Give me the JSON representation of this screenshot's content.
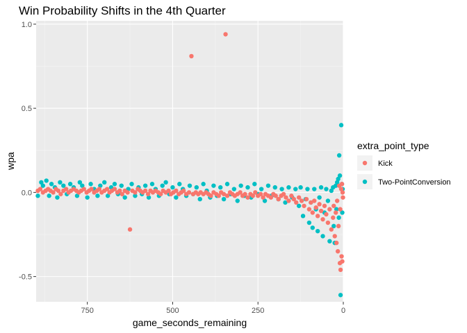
{
  "chart_data": {
    "type": "scatter",
    "title": "Win Probability Shifts in the 4th Quarter",
    "xlabel": "game_seconds_remaining",
    "ylabel": "wpa",
    "xlim": [
      900,
      0
    ],
    "ylim": [
      -0.65,
      1.02
    ],
    "x_reversed": true,
    "x_ticks": [
      750,
      500,
      250,
      0
    ],
    "y_ticks": [
      1.0,
      0.5,
      0.0,
      -0.5
    ],
    "x_tick_labels": [
      "750",
      "500",
      "250",
      "0"
    ],
    "y_tick_labels": [
      "1.0",
      "0.5",
      "0.0",
      "-0.5"
    ],
    "grid": true,
    "legend": {
      "title": "extra_point_type",
      "position": "right",
      "entries": [
        {
          "label": "Kick",
          "color": "#F8766D"
        },
        {
          "label": "Two-PointConversion",
          "color": "#00BFC4"
        }
      ]
    },
    "series": [
      {
        "name": "Two-PointConversion",
        "color": "#00BFC4",
        "points": [
          [
            895,
            -0.02
          ],
          [
            885,
            0.06
          ],
          [
            880,
            0.04
          ],
          [
            870,
            0.07
          ],
          [
            862,
            -0.02
          ],
          [
            855,
            0.05
          ],
          [
            845,
            0.03
          ],
          [
            838,
            -0.03
          ],
          [
            830,
            0.06
          ],
          [
            820,
            0.04
          ],
          [
            810,
            -0.01
          ],
          [
            800,
            0.05
          ],
          [
            790,
            0.03
          ],
          [
            780,
            -0.02
          ],
          [
            772,
            0.06
          ],
          [
            765,
            0.04
          ],
          [
            750,
            -0.03
          ],
          [
            740,
            0.05
          ],
          [
            730,
            0.02
          ],
          [
            720,
            -0.02
          ],
          [
            712,
            0.04
          ],
          [
            700,
            0.06
          ],
          [
            690,
            -0.02
          ],
          [
            680,
            0.03
          ],
          [
            670,
            0.05
          ],
          [
            660,
            -0.01
          ],
          [
            650,
            0.04
          ],
          [
            640,
            -0.03
          ],
          [
            630,
            0.02
          ],
          [
            620,
            0.05
          ],
          [
            610,
            -0.02
          ],
          [
            600,
            0.03
          ],
          [
            590,
            -0.01
          ],
          [
            580,
            0.04
          ],
          [
            570,
            -0.03
          ],
          [
            560,
            0.05
          ],
          [
            550,
            0.02
          ],
          [
            540,
            -0.02
          ],
          [
            530,
            0.04
          ],
          [
            520,
            0.06
          ],
          [
            510,
            -0.01
          ],
          [
            500,
            0.03
          ],
          [
            490,
            -0.03
          ],
          [
            480,
            0.05
          ],
          [
            470,
            0.02
          ],
          [
            460,
            -0.02
          ],
          [
            450,
            0.04
          ],
          [
            440,
            -0.01
          ],
          [
            430,
            0.03
          ],
          [
            420,
            -0.04
          ],
          [
            410,
            0.05
          ],
          [
            400,
            0.01
          ],
          [
            390,
            -0.03
          ],
          [
            380,
            0.04
          ],
          [
            370,
            -0.02
          ],
          [
            360,
            0.03
          ],
          [
            350,
            -0.04
          ],
          [
            340,
            0.05
          ],
          [
            330,
            -0.01
          ],
          [
            320,
            0.02
          ],
          [
            310,
            -0.05
          ],
          [
            300,
            0.04
          ],
          [
            290,
            -0.02
          ],
          [
            280,
            0.03
          ],
          [
            270,
            -0.03
          ],
          [
            260,
            0.05
          ],
          [
            250,
            -0.01
          ],
          [
            240,
            0.02
          ],
          [
            230,
            -0.05
          ],
          [
            220,
            0.04
          ],
          [
            210,
            -0.02
          ],
          [
            200,
            0.03
          ],
          [
            190,
            -0.04
          ],
          [
            180,
            0.02
          ],
          [
            170,
            -0.06
          ],
          [
            160,
            0.03
          ],
          [
            150,
            -0.03
          ],
          [
            140,
            0.02
          ],
          [
            130,
            -0.08
          ],
          [
            125,
            0.03
          ],
          [
            118,
            -0.14
          ],
          [
            110,
            -0.04
          ],
          [
            105,
            0.02
          ],
          [
            100,
            -0.18
          ],
          [
            95,
            -0.06
          ],
          [
            90,
            -0.21
          ],
          [
            85,
            0.02
          ],
          [
            80,
            -0.1
          ],
          [
            75,
            -0.23
          ],
          [
            70,
            -0.03
          ],
          [
            65,
            0.03
          ],
          [
            60,
            -0.26
          ],
          [
            55,
            -0.12
          ],
          [
            50,
            0.02
          ],
          [
            45,
            -0.05
          ],
          [
            40,
            -0.29
          ],
          [
            35,
            0.01
          ],
          [
            30,
            0.03
          ],
          [
            28,
            -0.2
          ],
          [
            25,
            -0.3
          ],
          [
            22,
            0.04
          ],
          [
            20,
            -0.1
          ],
          [
            18,
            0.06
          ],
          [
            15,
            0.08
          ],
          [
            13,
            -0.15
          ],
          [
            12,
            0.22
          ],
          [
            10,
            0.1
          ],
          [
            8,
            -0.61
          ],
          [
            6,
            0.4
          ],
          [
            4,
            0.05
          ],
          [
            3,
            -0.12
          ],
          [
            2,
            0.02
          ]
        ]
      },
      {
        "name": "Kick",
        "color": "#F8766D",
        "points": [
          [
            895,
            0.01
          ],
          [
            888,
            0.02
          ],
          [
            880,
            0.0
          ],
          [
            872,
            0.01
          ],
          [
            865,
            0.02
          ],
          [
            858,
            0.01
          ],
          [
            850,
            0.0
          ],
          [
            842,
            0.02
          ],
          [
            835,
            0.01
          ],
          [
            828,
            -0.01
          ],
          [
            820,
            0.01
          ],
          [
            812,
            0.02
          ],
          [
            805,
            0.0
          ],
          [
            798,
            0.01
          ],
          [
            790,
            0.02
          ],
          [
            782,
            0.01
          ],
          [
            775,
            0.0
          ],
          [
            768,
            0.01
          ],
          [
            760,
            0.02
          ],
          [
            752,
            0.0
          ],
          [
            745,
            0.01
          ],
          [
            738,
            0.02
          ],
          [
            730,
            0.0
          ],
          [
            722,
            0.01
          ],
          [
            715,
            0.02
          ],
          [
            708,
            0.0
          ],
          [
            700,
            0.01
          ],
          [
            692,
            0.02
          ],
          [
            685,
            0.0
          ],
          [
            678,
            0.01
          ],
          [
            670,
            0.02
          ],
          [
            662,
            0.0
          ],
          [
            655,
            0.01
          ],
          [
            648,
            -0.01
          ],
          [
            640,
            0.01
          ],
          [
            632,
            0.0
          ],
          [
            625,
            -0.22
          ],
          [
            618,
            0.01
          ],
          [
            610,
            0.0
          ],
          [
            602,
            0.02
          ],
          [
            595,
            0.01
          ],
          [
            588,
            0.0
          ],
          [
            580,
            0.01
          ],
          [
            572,
            -0.01
          ],
          [
            565,
            0.01
          ],
          [
            558,
            0.0
          ],
          [
            550,
            0.01
          ],
          [
            542,
            0.0
          ],
          [
            535,
            -0.01
          ],
          [
            528,
            0.01
          ],
          [
            520,
            0.0
          ],
          [
            512,
            0.01
          ],
          [
            505,
            -0.01
          ],
          [
            498,
            0.0
          ],
          [
            490,
            0.01
          ],
          [
            482,
            -0.01
          ],
          [
            475,
            0.0
          ],
          [
            468,
            0.01
          ],
          [
            460,
            -0.01
          ],
          [
            452,
            0.0
          ],
          [
            445,
            0.81
          ],
          [
            440,
            -0.01
          ],
          [
            432,
            0.0
          ],
          [
            425,
            -0.01
          ],
          [
            418,
            0.0
          ],
          [
            410,
            -0.01
          ],
          [
            402,
            0.0
          ],
          [
            395,
            -0.01
          ],
          [
            388,
            -0.02
          ],
          [
            380,
            0.0
          ],
          [
            372,
            -0.01
          ],
          [
            365,
            -0.02
          ],
          [
            358,
            0.0
          ],
          [
            350,
            -0.01
          ],
          [
            345,
            0.94
          ],
          [
            340,
            -0.02
          ],
          [
            332,
            0.0
          ],
          [
            325,
            -0.01
          ],
          [
            318,
            -0.02
          ],
          [
            310,
            -0.01
          ],
          [
            302,
            0.0
          ],
          [
            295,
            -0.02
          ],
          [
            288,
            -0.01
          ],
          [
            280,
            -0.03
          ],
          [
            272,
            -0.01
          ],
          [
            265,
            -0.02
          ],
          [
            258,
            0.0
          ],
          [
            250,
            -0.02
          ],
          [
            242,
            -0.01
          ],
          [
            235,
            -0.03
          ],
          [
            228,
            -0.01
          ],
          [
            220,
            -0.02
          ],
          [
            212,
            -0.03
          ],
          [
            205,
            -0.01
          ],
          [
            198,
            -0.02
          ],
          [
            190,
            -0.04
          ],
          [
            182,
            -0.02
          ],
          [
            175,
            -0.01
          ],
          [
            168,
            -0.03
          ],
          [
            160,
            -0.05
          ],
          [
            152,
            -0.02
          ],
          [
            145,
            -0.04
          ],
          [
            138,
            -0.06
          ],
          [
            130,
            -0.03
          ],
          [
            122,
            -0.05
          ],
          [
            115,
            -0.08
          ],
          [
            108,
            -0.04
          ],
          [
            100,
            -0.1
          ],
          [
            95,
            -0.06
          ],
          [
            90,
            -0.12
          ],
          [
            85,
            -0.05
          ],
          [
            80,
            -0.09
          ],
          [
            75,
            -0.14
          ],
          [
            70,
            -0.07
          ],
          [
            65,
            -0.11
          ],
          [
            60,
            -0.16
          ],
          [
            55,
            -0.08
          ],
          [
            50,
            -0.13
          ],
          [
            45,
            -0.18
          ],
          [
            40,
            -0.1
          ],
          [
            35,
            -0.22
          ],
          [
            30,
            -0.15
          ],
          [
            28,
            -0.08
          ],
          [
            25,
            -0.26
          ],
          [
            22,
            -0.12
          ],
          [
            20,
            -0.3
          ],
          [
            18,
            -0.05
          ],
          [
            16,
            -0.35
          ],
          [
            14,
            -0.2
          ],
          [
            12,
            0.04
          ],
          [
            10,
            -0.42
          ],
          [
            9,
            -0.1
          ],
          [
            8,
            -0.46
          ],
          [
            6,
            0.02
          ],
          [
            5,
            -0.38
          ],
          [
            4,
            0.05
          ],
          [
            3,
            -0.41
          ],
          [
            2,
            0.0
          ],
          [
            1,
            -0.03
          ]
        ]
      }
    ]
  }
}
